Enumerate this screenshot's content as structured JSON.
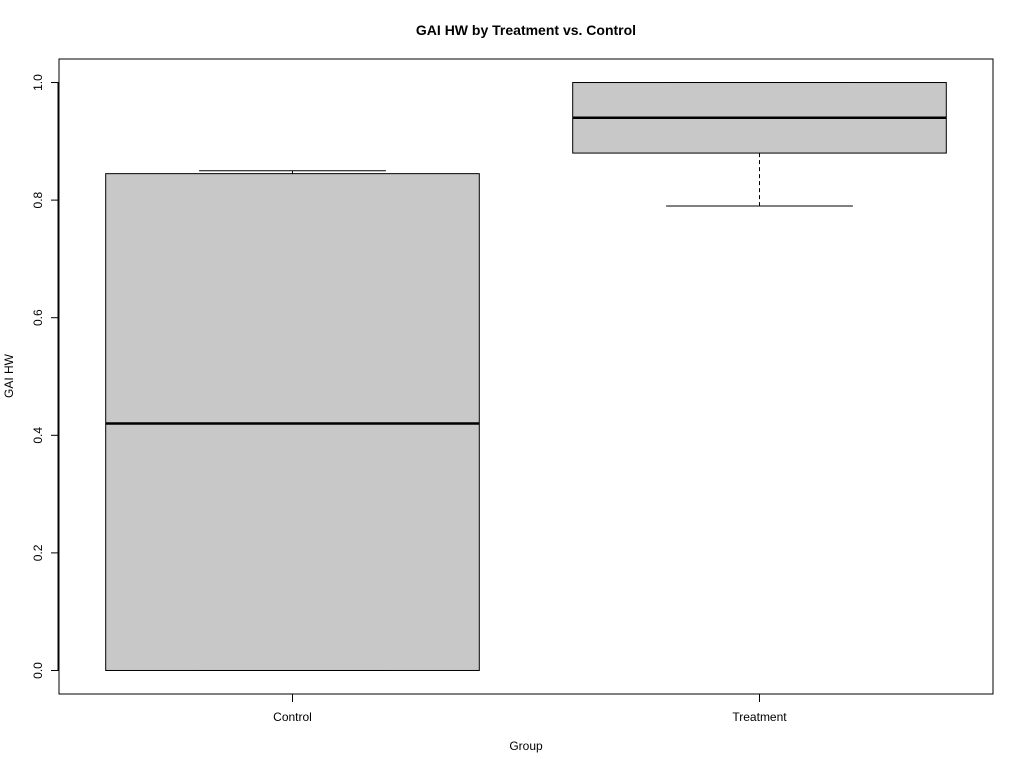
{
  "chart_data": {
    "type": "boxplot",
    "title": "GAI HW by Treatment vs. Control",
    "xlabel": "Group",
    "ylabel": "GAI HW",
    "categories": [
      "Control",
      "Treatment"
    ],
    "ylim": [
      -0.04,
      1.04
    ],
    "yticks": [
      "0.0",
      "0.2",
      "0.4",
      "0.6",
      "0.8",
      "1.0"
    ],
    "box_fill": "#c8c8c8",
    "boxes": [
      {
        "category": "Control",
        "whisker_low": 0.0,
        "q1": 0.0,
        "median": 0.42,
        "q3": 0.845,
        "whisker_high": 0.85
      },
      {
        "category": "Treatment",
        "whisker_low": 0.79,
        "q1": 0.88,
        "median": 0.94,
        "q3": 1.0,
        "whisker_high": 1.0
      }
    ],
    "grid": false,
    "legend": "none"
  }
}
